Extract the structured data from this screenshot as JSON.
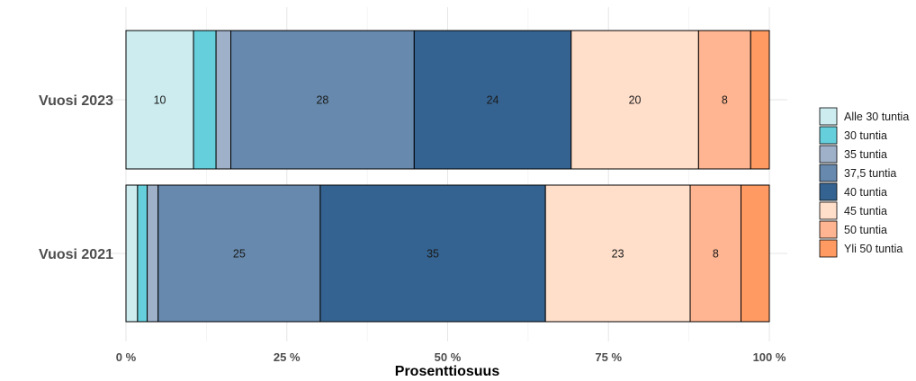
{
  "chart_data": {
    "type": "bar",
    "orientation": "horizontal",
    "stacked": true,
    "xlabel": "Prosenttiosuus",
    "ylabel": "",
    "xlim": [
      0,
      100
    ],
    "x_ticks": [
      "0 %",
      "25 %",
      "50 %",
      "75 %",
      "100 %"
    ],
    "x_tick_values": [
      0,
      25,
      50,
      75,
      100
    ],
    "grid": true,
    "legend_position": "right",
    "categories": [
      "Vuosi 2023",
      "Vuosi 2021"
    ],
    "series": [
      {
        "name": "Alle 30 tuntia",
        "color": "#ccecf0",
        "values": [
          10.5,
          1.8
        ]
      },
      {
        "name": "30 tuntia",
        "color": "#66cfdc",
        "values": [
          3.5,
          1.5
        ]
      },
      {
        "name": "35 tuntia",
        "color": "#9eb1c8",
        "values": [
          2.3,
          1.7
        ]
      },
      {
        "name": "37,5 tuntia",
        "color": "#6689ad",
        "values": [
          28.5,
          25.2
        ]
      },
      {
        "name": "40 tuntia",
        "color": "#346391",
        "values": [
          24.4,
          35.0
        ]
      },
      {
        "name": "45 tuntia",
        "color": "#ffdeca",
        "values": [
          19.8,
          22.5
        ]
      },
      {
        "name": "50 tuntia",
        "color": "#ffb591",
        "values": [
          8.1,
          7.9
        ]
      },
      {
        "name": "Yli 50 tuntia",
        "color": "#ff9a63",
        "values": [
          2.9,
          4.4
        ]
      }
    ],
    "data_labels": [
      [
        "10",
        "",
        "",
        "28",
        "24",
        "20",
        "8",
        ""
      ],
      [
        "",
        "",
        "",
        "25",
        "35",
        "23",
        "8",
        ""
      ]
    ]
  }
}
